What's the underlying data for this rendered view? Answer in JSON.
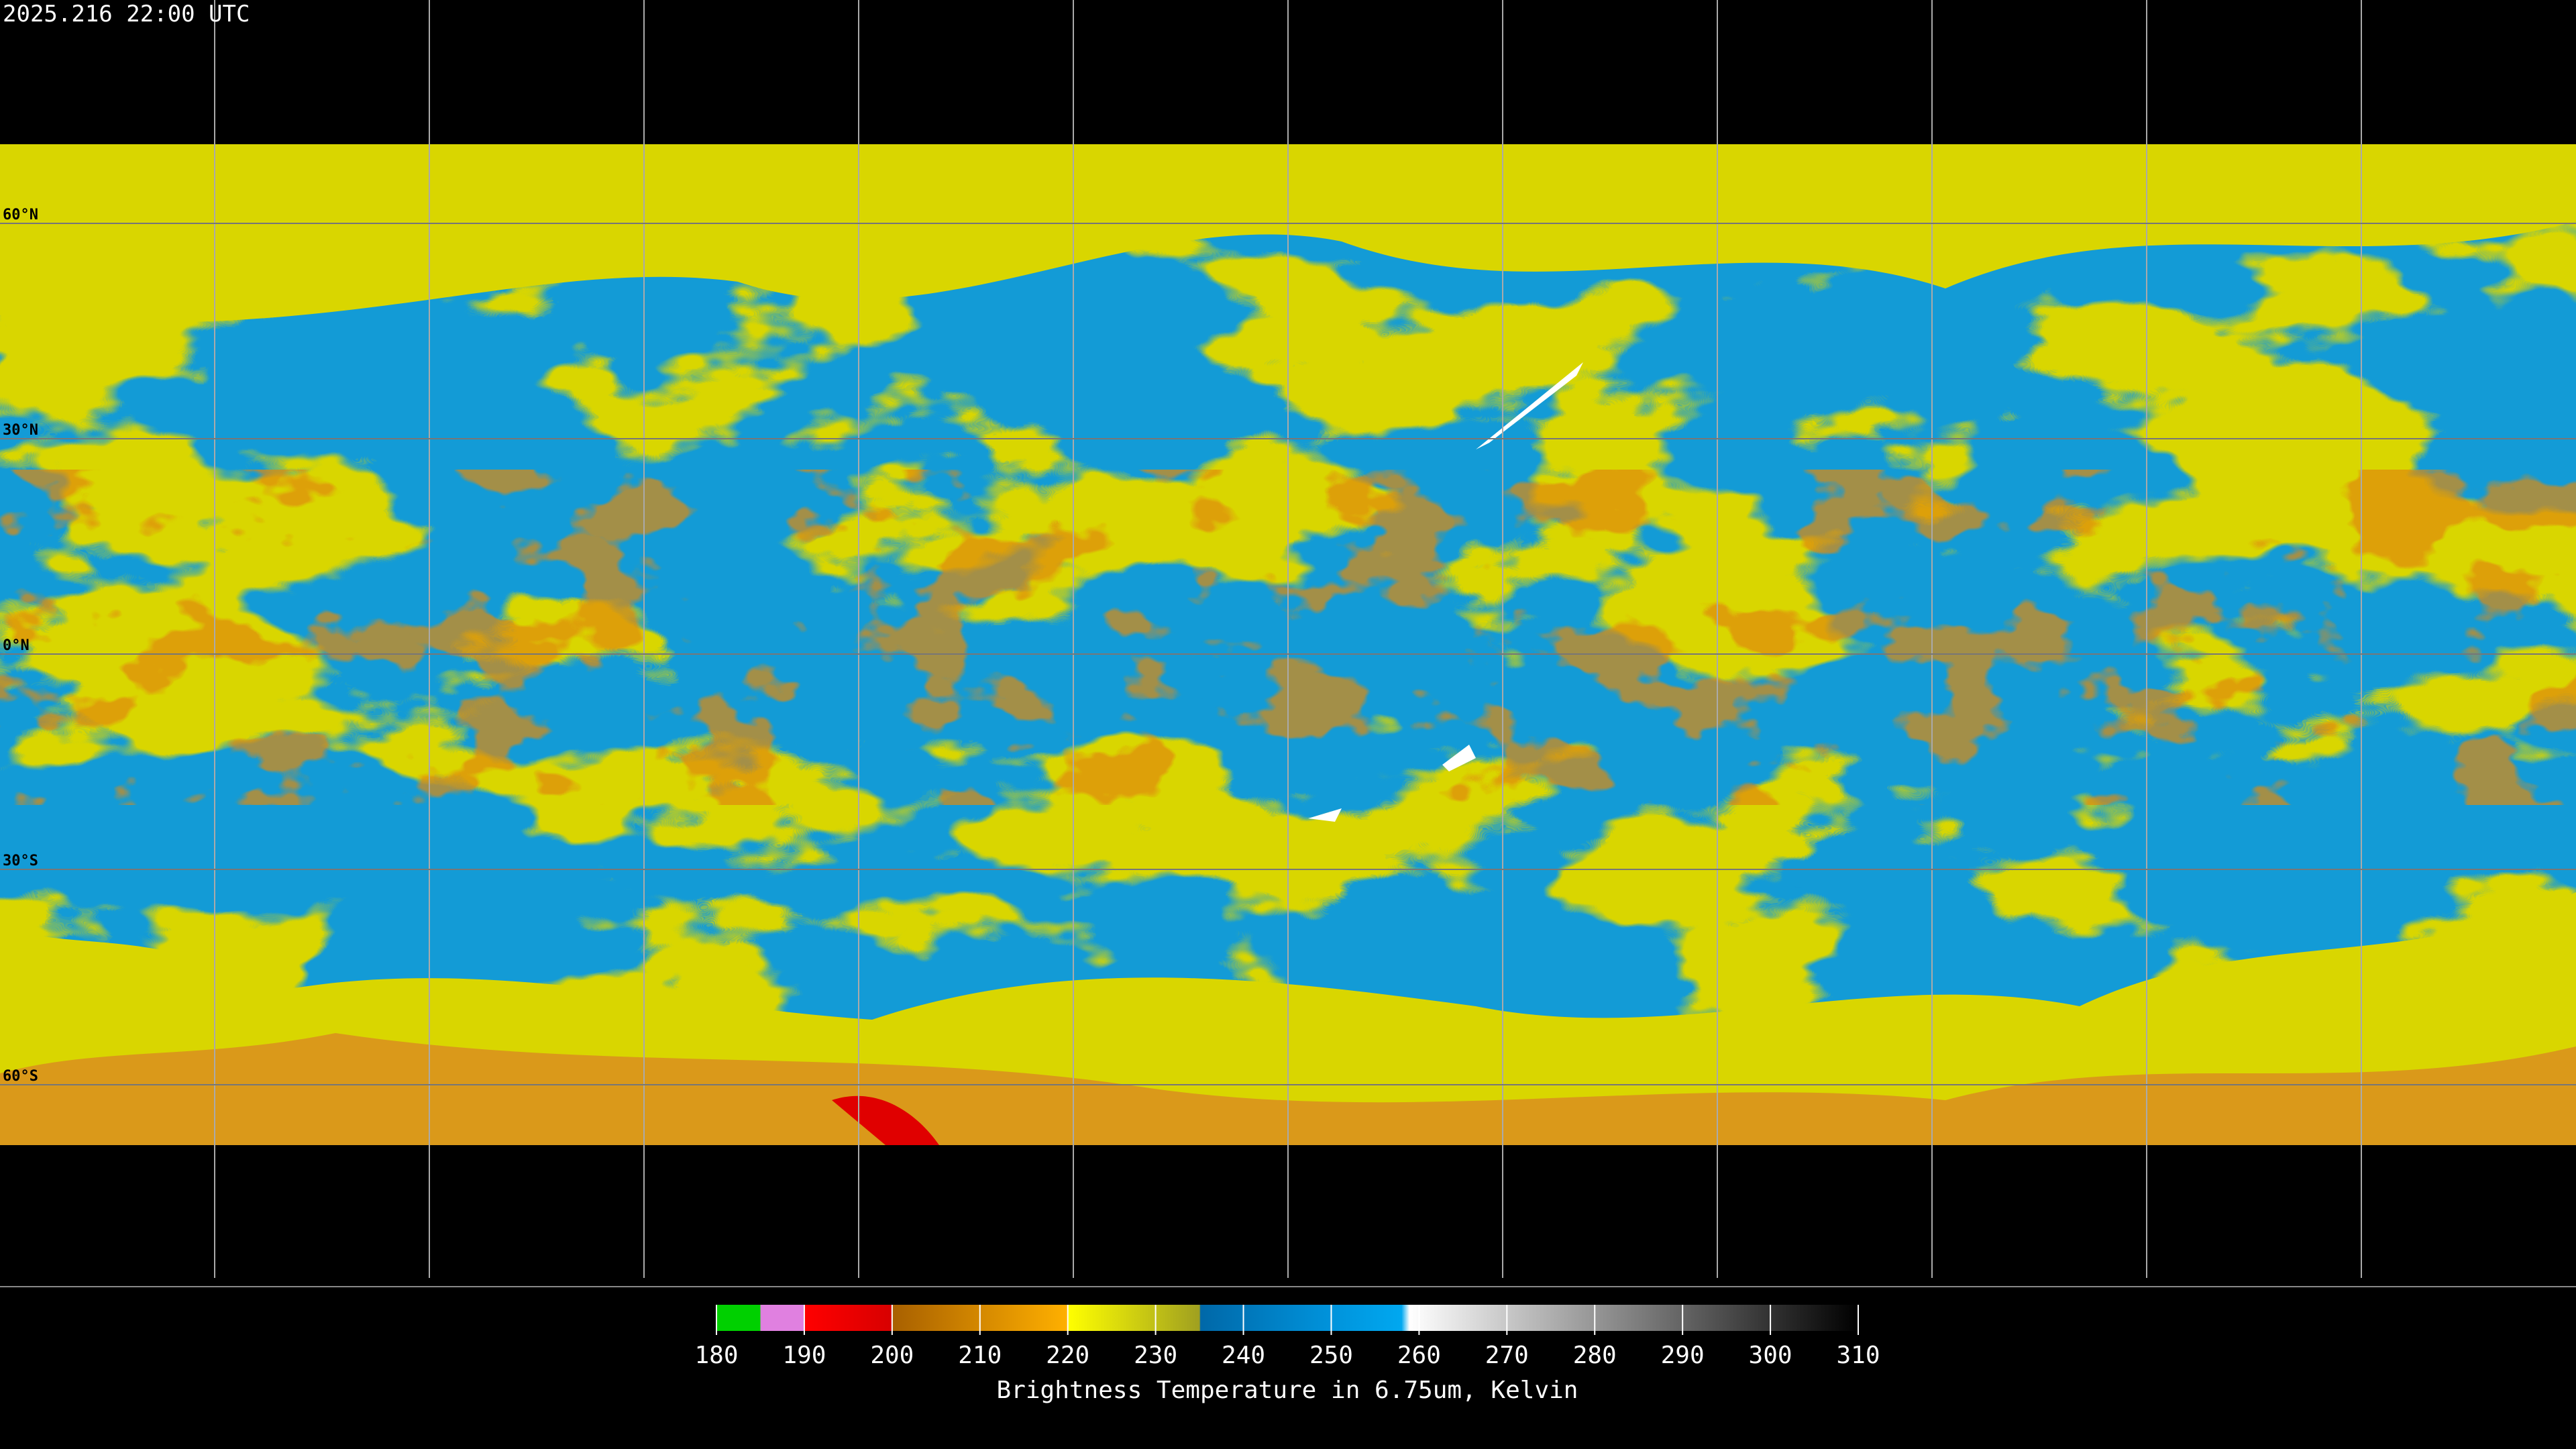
{
  "header": {
    "timestamp": "2025.216 22:00 UTC"
  },
  "map": {
    "latitude_lines": [
      {
        "value": 60,
        "label": "60°N"
      },
      {
        "value": 30,
        "label": "30°N"
      },
      {
        "value": 0,
        "label": "0°N"
      },
      {
        "value": -30,
        "label": "30°S"
      },
      {
        "value": -60,
        "label": "60°S"
      }
    ]
  },
  "colorbar": {
    "lim": [
      180,
      310
    ],
    "ticks": [
      180,
      190,
      200,
      210,
      220,
      230,
      240,
      250,
      260,
      270,
      280,
      290,
      300,
      310
    ],
    "label": "Brightness Temperature in 6.75um, Kelvin"
  }
}
